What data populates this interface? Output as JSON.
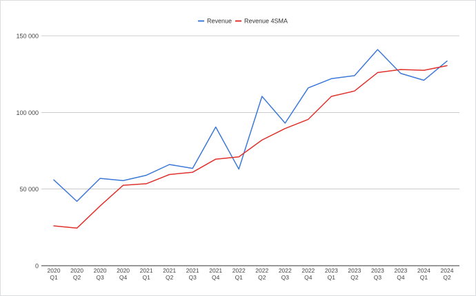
{
  "chart_data": {
    "type": "line",
    "categories": [
      [
        "2020",
        "Q1"
      ],
      [
        "2020",
        "Q2"
      ],
      [
        "2020",
        "Q3"
      ],
      [
        "2020",
        "Q4"
      ],
      [
        "2021",
        "Q1"
      ],
      [
        "2021",
        "Q2"
      ],
      [
        "2021",
        "Q3"
      ],
      [
        "2021",
        "Q4"
      ],
      [
        "2022",
        "Q1"
      ],
      [
        "2022",
        "Q2"
      ],
      [
        "2022",
        "Q3"
      ],
      [
        "2022",
        "Q4"
      ],
      [
        "2023",
        "Q1"
      ],
      [
        "2023",
        "Q2"
      ],
      [
        "2023",
        "Q3"
      ],
      [
        "2023",
        "Q4"
      ],
      [
        "2024",
        "Q1"
      ],
      [
        "2024",
        "Q2"
      ]
    ],
    "series": [
      {
        "name": "Revenue",
        "color": "#3c78d8",
        "values": [
          56000,
          42000,
          57000,
          55500,
          59000,
          66000,
          63500,
          90500,
          63000,
          110500,
          93000,
          116000,
          122000,
          124000,
          141000,
          125500,
          121000,
          133500
        ]
      },
      {
        "name": "Revenue 4SMA",
        "color": "#e0312b",
        "values": [
          26000,
          24500,
          39000,
          52500,
          53500,
          59500,
          61000,
          69500,
          71000,
          82000,
          89500,
          95500,
          110500,
          114000,
          126000,
          128000,
          127500,
          130500
        ]
      }
    ],
    "yticks": [
      0,
      50000,
      100000,
      150000
    ],
    "ytick_labels": [
      "0",
      "50 000",
      "100 000",
      "150 000"
    ],
    "ylim": [
      0,
      150000
    ],
    "grid": true,
    "legend_position": "top-center",
    "title": "",
    "xlabel": "",
    "ylabel": ""
  }
}
